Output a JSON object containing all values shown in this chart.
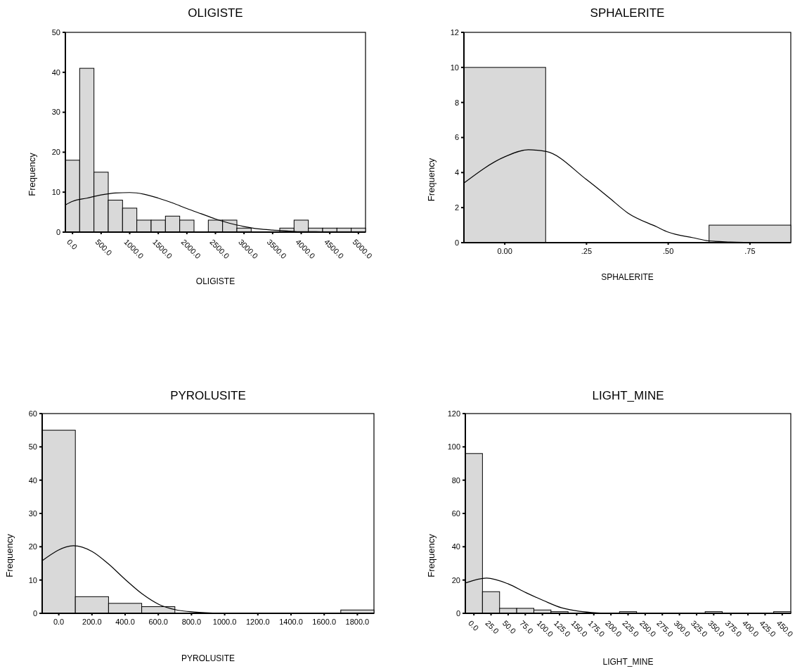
{
  "chart_data": [
    {
      "type": "histogram",
      "title": "OLIGISTE",
      "xlabel": "OLIGISTE",
      "ylabel": "Frequency",
      "color": "#d9d9d9",
      "bins": [
        -125,
        125,
        375,
        625,
        875,
        1125,
        1375,
        1625,
        1875,
        2125,
        2375,
        2625,
        2875,
        3125,
        3375,
        3625,
        3875,
        4125,
        4375,
        4625,
        4875,
        5125
      ],
      "values": [
        18,
        41,
        15,
        8,
        6,
        3,
        3,
        4,
        3,
        0,
        3,
        3,
        1,
        0,
        0,
        1,
        3,
        1,
        1,
        1,
        1
      ],
      "series": [
        {
          "type": "line",
          "color": "#000000",
          "x": [
            -125,
            0,
            250,
            500,
            750,
            1000,
            1250,
            1500,
            1750,
            2000,
            2250,
            2500,
            2750,
            3000,
            3250,
            3500,
            3750,
            4000,
            4250,
            4500
          ],
          "values": [
            6.8,
            7.7,
            8.5,
            9.3,
            9.8,
            9.9,
            9.5,
            8.5,
            7.3,
            5.9,
            4.6,
            3.3,
            2.2,
            1.4,
            0.8,
            0.5,
            0.3,
            0.1,
            0.1,
            0
          ]
        }
      ],
      "xlim": [
        -125,
        5125
      ],
      "xticks": [
        {
          "value": 0,
          "label": "0.0"
        },
        {
          "value": 500,
          "label": "500.0"
        },
        {
          "value": 1000,
          "label": "1000.0"
        },
        {
          "value": 1500,
          "label": "1500.0"
        },
        {
          "value": 2000,
          "label": "2000.0"
        },
        {
          "value": 2500,
          "label": "2500.0"
        },
        {
          "value": 3000,
          "label": "3000.0"
        },
        {
          "value": 3500,
          "label": "3500.0"
        },
        {
          "value": 4000,
          "label": "4000.0"
        },
        {
          "value": 4500,
          "label": "4500.0"
        },
        {
          "value": 5000,
          "label": "5000.0"
        }
      ],
      "ylim": [
        0,
        50
      ],
      "yticks": [
        0,
        10,
        20,
        30,
        40,
        50
      ]
    },
    {
      "type": "histogram",
      "title": "SPHALERITE",
      "xlabel": "SPHALERITE",
      "ylabel": "Frequency",
      "color": "#d9d9d9",
      "bins": [
        -0.125,
        0.125,
        0.375,
        0.625,
        0.875
      ],
      "values": [
        10,
        0,
        0,
        1
      ],
      "series": [
        {
          "type": "line",
          "color": "#000000",
          "x": [
            -0.125,
            0,
            0.072,
            0.127,
            0.25,
            0.317,
            0.376,
            0.465,
            0.5,
            0.576,
            0.625,
            0.69,
            0.79
          ],
          "values": [
            3.4,
            4.9,
            5.3,
            5.2,
            3.6,
            2.6,
            1.7,
            0.9,
            0.6,
            0.28,
            0.1,
            0.04,
            0
          ]
        }
      ],
      "xlim": [
        -0.125,
        0.875
      ],
      "xticks": [
        {
          "value": 0,
          "label": "0.00"
        },
        {
          "value": 0.25,
          "label": ".25"
        },
        {
          "value": 0.5,
          "label": ".50"
        },
        {
          "value": 0.75,
          "label": ".75"
        }
      ],
      "ylim": [
        0,
        12
      ],
      "yticks": [
        0,
        2,
        4,
        6,
        8,
        10,
        12
      ]
    },
    {
      "type": "histogram",
      "title": "PYROLUSITE",
      "xlabel": "PYROLUSITE",
      "ylabel": "Frequency",
      "color": "#d9d9d9",
      "bins": [
        -100,
        100,
        300,
        500,
        700,
        900,
        1100,
        1300,
        1500,
        1700,
        1900
      ],
      "values": [
        55,
        5,
        3,
        2,
        0,
        0,
        0,
        0,
        0,
        1
      ],
      "series": [
        {
          "type": "line",
          "color": "#000000",
          "x": [
            -100,
            89,
            200,
            296,
            400,
            504,
            607,
            711,
            815,
            978
          ],
          "values": [
            15.8,
            20.3,
            18.6,
            15,
            10.2,
            5.8,
            2.6,
            1,
            0.4,
            0
          ]
        }
      ],
      "xlim": [
        -100,
        1900
      ],
      "xticks": [
        {
          "value": 0,
          "label": "0.0"
        },
        {
          "value": 200,
          "label": "200.0"
        },
        {
          "value": 400,
          "label": "400.0"
        },
        {
          "value": 600,
          "label": "600.0"
        },
        {
          "value": 800,
          "label": "800.0"
        },
        {
          "value": 1000,
          "label": "1000.0"
        },
        {
          "value": 1200,
          "label": "1200.0"
        },
        {
          "value": 1400,
          "label": "1400.0"
        },
        {
          "value": 1600,
          "label": "1600.0"
        },
        {
          "value": 1800,
          "label": "1800.0"
        }
      ],
      "ylim": [
        0,
        60
      ],
      "yticks": [
        0,
        10,
        20,
        30,
        40,
        50,
        60
      ]
    },
    {
      "type": "histogram",
      "title": "LIGHT_MINE",
      "xlabel": "LIGHT_MINE",
      "ylabel": "Frequency",
      "color": "#d9d9d9",
      "bins": [
        -12.5,
        12.5,
        37.5,
        62.5,
        87.5,
        112.5,
        137.5,
        162.5,
        187.5,
        212.5,
        237.5,
        262.5,
        287.5,
        312.5,
        337.5,
        362.5,
        387.5,
        412.5,
        437.5,
        462.5
      ],
      "values": [
        96,
        13,
        3,
        3,
        2,
        1,
        0,
        0,
        0,
        1,
        0,
        0,
        0,
        0,
        1,
        0,
        0,
        0,
        1
      ],
      "series": [
        {
          "type": "line",
          "color": "#000000",
          "x": [
            -12.5,
            18.5,
            50,
            76,
            102,
            128,
            154,
            180,
            205
          ],
          "values": [
            18.2,
            21.2,
            17.7,
            12.4,
            7.6,
            3.3,
            1.2,
            0.3,
            0
          ]
        }
      ],
      "xlim": [
        -12.5,
        462.5
      ],
      "xticks": [
        {
          "value": 0,
          "label": "0.0"
        },
        {
          "value": 25,
          "label": "25.0"
        },
        {
          "value": 50,
          "label": "50.0"
        },
        {
          "value": 75,
          "label": "75.0"
        },
        {
          "value": 100,
          "label": "100.0"
        },
        {
          "value": 125,
          "label": "125.0"
        },
        {
          "value": 150,
          "label": "150.0"
        },
        {
          "value": 175,
          "label": "175.0"
        },
        {
          "value": 200,
          "label": "200.0"
        },
        {
          "value": 225,
          "label": "225.0"
        },
        {
          "value": 250,
          "label": "250.0"
        },
        {
          "value": 275,
          "label": "275.0"
        },
        {
          "value": 300,
          "label": "300.0"
        },
        {
          "value": 325,
          "label": "325.0"
        },
        {
          "value": 350,
          "label": "350.0"
        },
        {
          "value": 375,
          "label": "375.0"
        },
        {
          "value": 400,
          "label": "400.0"
        },
        {
          "value": 425,
          "label": "425.0"
        },
        {
          "value": 450,
          "label": "450.0"
        }
      ],
      "ylim": [
        0,
        120
      ],
      "yticks": [
        0,
        20,
        40,
        60,
        80,
        100,
        120
      ]
    }
  ]
}
